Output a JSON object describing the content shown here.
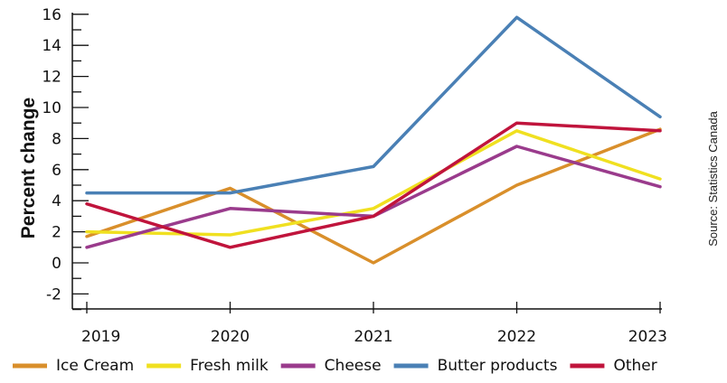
{
  "chart_data": {
    "type": "line",
    "x": [
      "2019",
      "2020",
      "2021",
      "2022",
      "2023"
    ],
    "ylabel": "Percent change",
    "xlabel": "",
    "ylim": [
      -3,
      16
    ],
    "yticks": [
      16,
      14,
      12,
      10,
      8,
      6,
      4,
      2,
      0,
      -2
    ],
    "grid": false,
    "legend_position": "bottom",
    "source": "Source: Statistics Canada",
    "series": [
      {
        "name": "Ice Cream",
        "color": "#d98f2b",
        "values": [
          1.7,
          4.8,
          0.0,
          5.0,
          8.6
        ]
      },
      {
        "name": "Fresh milk",
        "color": "#f0e020",
        "values": [
          2.0,
          1.8,
          3.5,
          8.5,
          5.4
        ]
      },
      {
        "name": "Cheese",
        "color": "#9a3b8c",
        "values": [
          1.0,
          3.5,
          3.0,
          7.5,
          4.9
        ]
      },
      {
        "name": "Butter products",
        "color": "#4a80b5",
        "values": [
          4.5,
          4.5,
          6.2,
          15.8,
          9.4
        ]
      },
      {
        "name": "Other",
        "color": "#c0143c",
        "values": [
          3.8,
          1.0,
          3.0,
          9.0,
          8.5
        ]
      }
    ]
  }
}
